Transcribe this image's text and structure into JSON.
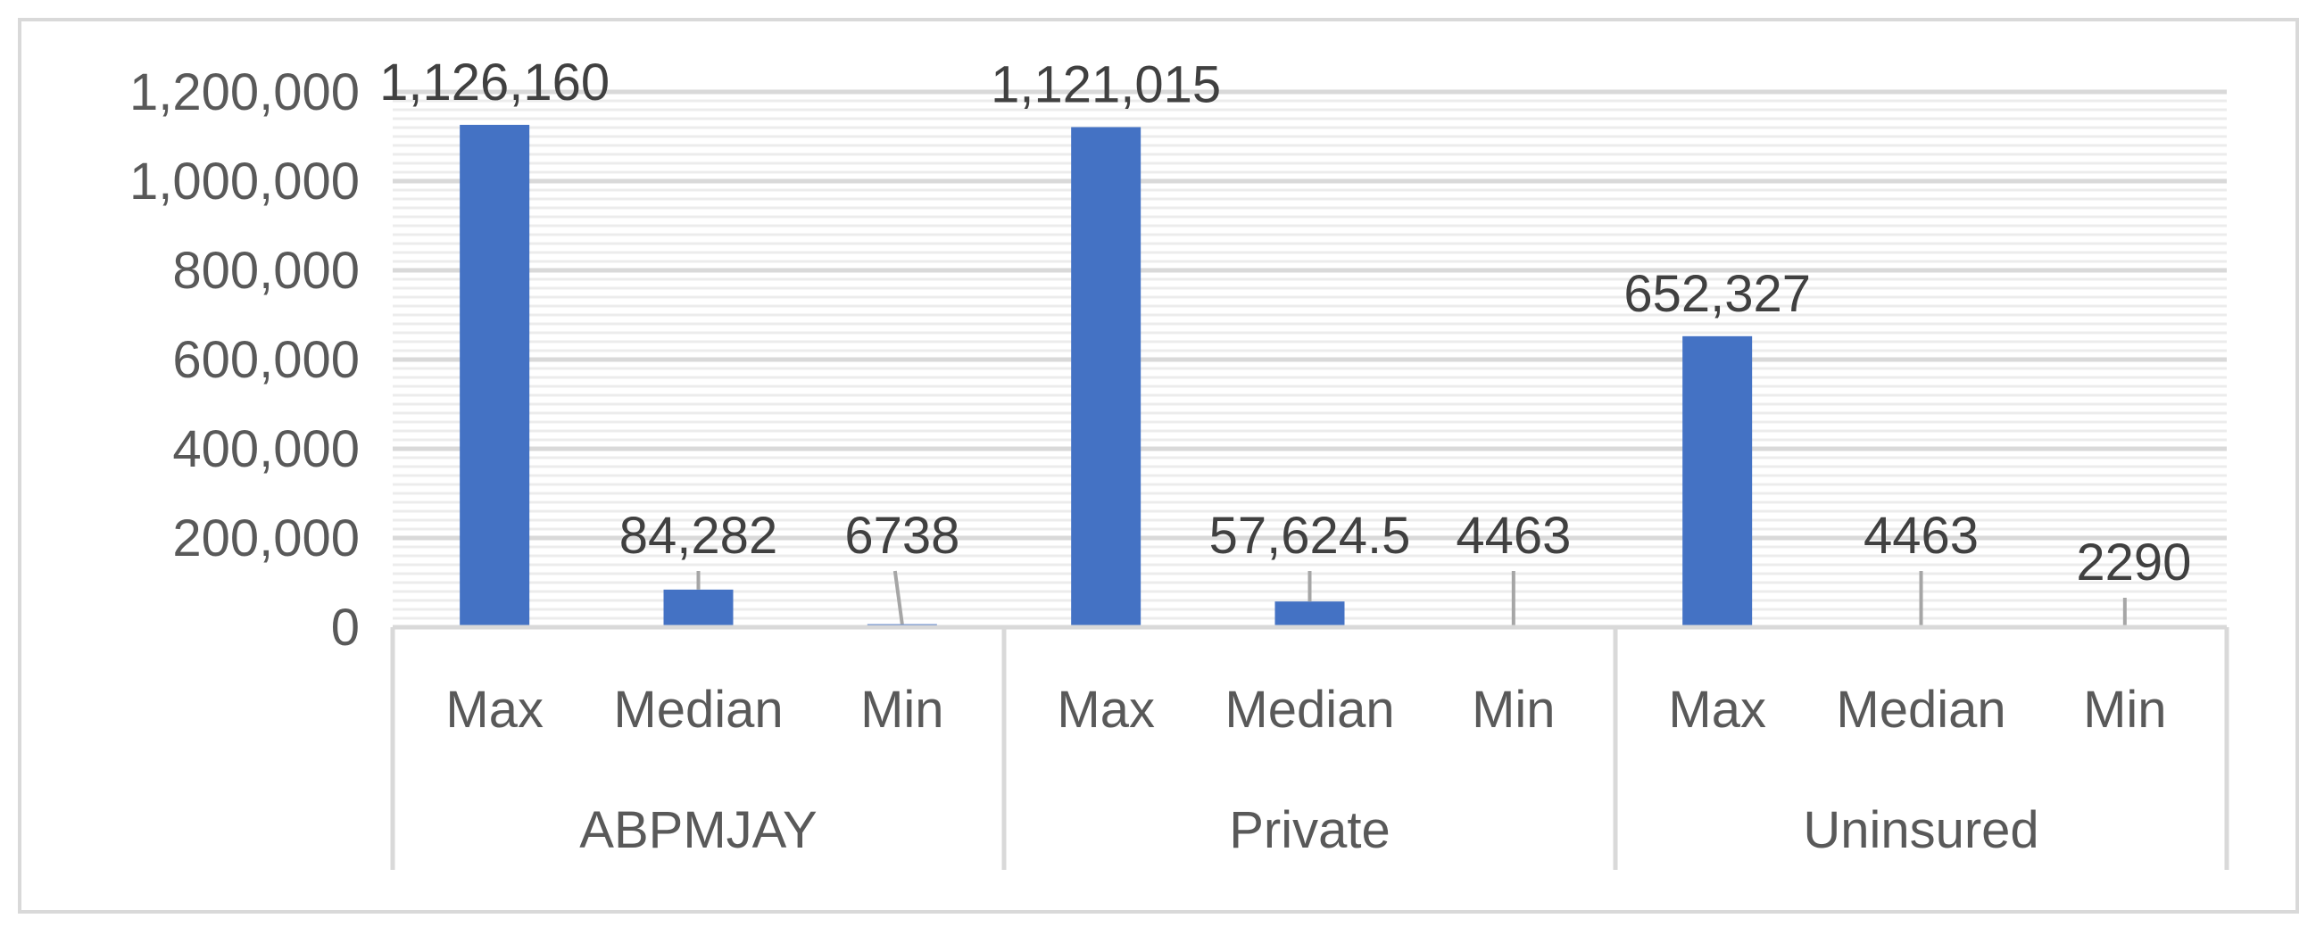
{
  "chart_data": {
    "type": "bar",
    "title": "",
    "xlabel": "",
    "ylabel": "",
    "ylim": [
      0,
      1200000
    ],
    "y_ticks": [
      0,
      200000,
      400000,
      600000,
      800000,
      1000000,
      1200000
    ],
    "y_tick_labels": [
      "0",
      "200,000",
      "400,000",
      "600,000",
      "800,000",
      "1,000,000",
      "1,200,000"
    ],
    "grid": true,
    "legend": "none",
    "bar_color": "#4472C4",
    "groups": [
      {
        "name": "ABPMJAY",
        "categories": [
          "Max",
          "Median",
          "Min"
        ],
        "values": [
          1126160,
          84282,
          6738
        ],
        "labels": [
          "1,126,160",
          "84,282",
          "6738"
        ]
      },
      {
        "name": "Private",
        "categories": [
          "Max",
          "Median",
          "Min"
        ],
        "values": [
          1121015,
          57624.5,
          4463
        ],
        "labels": [
          "1,121,015",
          "57,624.5",
          "4463"
        ]
      },
      {
        "name": "Uninsured",
        "categories": [
          "Max",
          "Median",
          "Min"
        ],
        "values": [
          652327,
          4463,
          2290
        ],
        "labels": [
          "652,327",
          "4463",
          "2290"
        ]
      }
    ]
  }
}
